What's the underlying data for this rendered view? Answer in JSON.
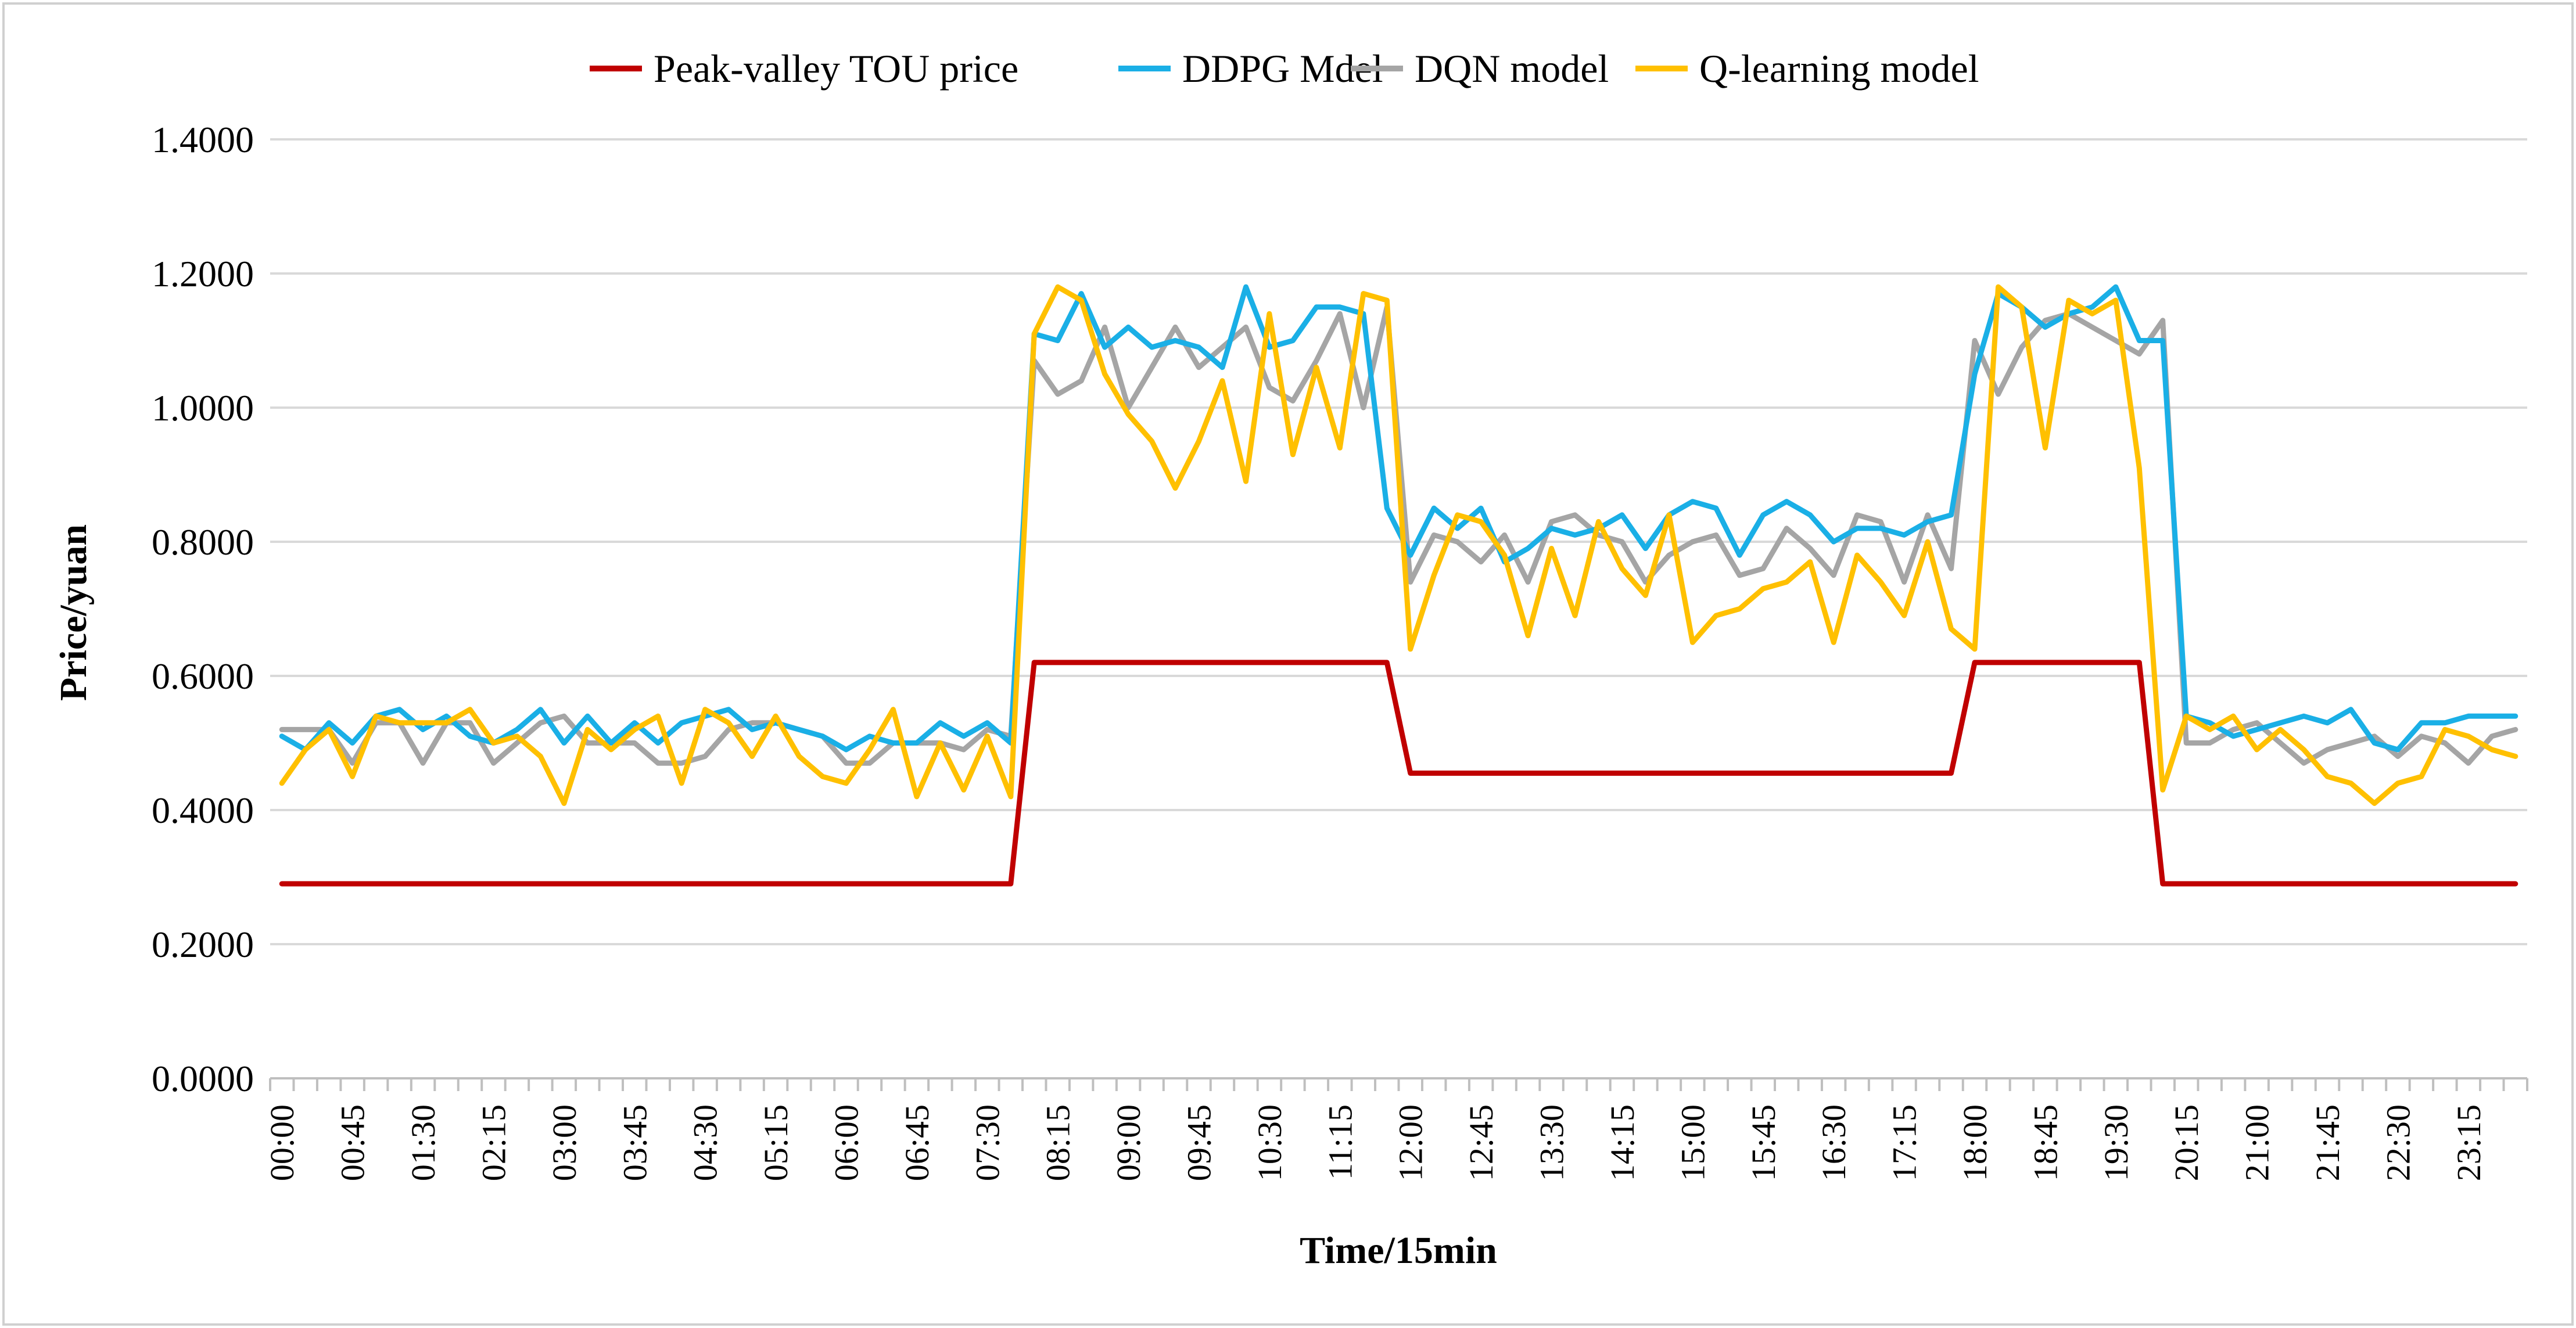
{
  "chart_data": {
    "type": "line",
    "title": "",
    "xlabel": "Time/15min",
    "ylabel": "Price/yuan",
    "ylim": [
      0,
      1.4
    ],
    "yticks": [
      "0.0000",
      "0.2000",
      "0.4000",
      "0.6000",
      "0.8000",
      "1.0000",
      "1.2000",
      "1.4000"
    ],
    "ytick_values": [
      0,
      0.2,
      0.4,
      0.6,
      0.8,
      1.0,
      1.2,
      1.4
    ],
    "grid": true,
    "legend_position": "top-center",
    "x_tick_labels": [
      "00:00",
      "00:45",
      "01:30",
      "02:15",
      "03:00",
      "03:45",
      "04:30",
      "05:15",
      "06:00",
      "06:45",
      "07:30",
      "08:15",
      "09:00",
      "09:45",
      "10:30",
      "11:15",
      "12:00",
      "12:45",
      "13:30",
      "14:15",
      "15:00",
      "15:45",
      "16:30",
      "17:15",
      "18:00",
      "18:45",
      "19:30",
      "20:15",
      "21:00",
      "21:45",
      "22:30",
      "23:15"
    ],
    "x_tick_every": 3,
    "n_points": 96,
    "series": [
      {
        "name": "Peak-valley TOU price",
        "color": "#C00000",
        "values": [
          0.29,
          0.29,
          0.29,
          0.29,
          0.29,
          0.29,
          0.29,
          0.29,
          0.29,
          0.29,
          0.29,
          0.29,
          0.29,
          0.29,
          0.29,
          0.29,
          0.29,
          0.29,
          0.29,
          0.29,
          0.29,
          0.29,
          0.29,
          0.29,
          0.29,
          0.29,
          0.29,
          0.29,
          0.29,
          0.29,
          0.29,
          0.29,
          0.62,
          0.62,
          0.62,
          0.62,
          0.62,
          0.62,
          0.62,
          0.62,
          0.62,
          0.62,
          0.62,
          0.62,
          0.62,
          0.62,
          0.62,
          0.62,
          0.455,
          0.455,
          0.455,
          0.455,
          0.455,
          0.455,
          0.455,
          0.455,
          0.455,
          0.455,
          0.455,
          0.455,
          0.455,
          0.455,
          0.455,
          0.455,
          0.455,
          0.455,
          0.455,
          0.455,
          0.455,
          0.455,
          0.455,
          0.455,
          0.62,
          0.62,
          0.62,
          0.62,
          0.62,
          0.62,
          0.62,
          0.62,
          0.29,
          0.29,
          0.29,
          0.29,
          0.29,
          0.29,
          0.29,
          0.29,
          0.29,
          0.29,
          0.29,
          0.29,
          0.29,
          0.29,
          0.29,
          0.29
        ]
      },
      {
        "name": "DDPG Mdel",
        "color": "#1AAFE6",
        "values": [
          0.51,
          0.49,
          0.53,
          0.5,
          0.54,
          0.55,
          0.52,
          0.54,
          0.51,
          0.5,
          0.52,
          0.55,
          0.5,
          0.54,
          0.5,
          0.53,
          0.5,
          0.53,
          0.54,
          0.55,
          0.52,
          0.53,
          0.52,
          0.51,
          0.49,
          0.51,
          0.5,
          0.5,
          0.53,
          0.51,
          0.53,
          0.5,
          1.11,
          1.1,
          1.17,
          1.09,
          1.12,
          1.09,
          1.1,
          1.09,
          1.06,
          1.18,
          1.09,
          1.1,
          1.15,
          1.15,
          1.14,
          0.85,
          0.78,
          0.85,
          0.82,
          0.85,
          0.77,
          0.79,
          0.82,
          0.81,
          0.82,
          0.84,
          0.79,
          0.84,
          0.86,
          0.85,
          0.78,
          0.84,
          0.86,
          0.84,
          0.8,
          0.82,
          0.82,
          0.81,
          0.83,
          0.84,
          1.05,
          1.17,
          1.15,
          1.12,
          1.14,
          1.15,
          1.18,
          1.1,
          1.1,
          0.54,
          0.53,
          0.51,
          0.52,
          0.53,
          0.54,
          0.53,
          0.55,
          0.5,
          0.49,
          0.53,
          0.53,
          0.54,
          0.54,
          0.54
        ]
      },
      {
        "name": "DQN model",
        "color": "#A5A5A5",
        "values": [
          0.52,
          0.52,
          0.52,
          0.47,
          0.53,
          0.53,
          0.47,
          0.53,
          0.53,
          0.47,
          0.5,
          0.53,
          0.54,
          0.5,
          0.5,
          0.5,
          0.47,
          0.47,
          0.48,
          0.52,
          0.53,
          0.53,
          0.52,
          0.51,
          0.47,
          0.47,
          0.5,
          0.5,
          0.5,
          0.49,
          0.52,
          0.51,
          1.07,
          1.02,
          1.04,
          1.12,
          1.0,
          1.06,
          1.12,
          1.06,
          1.09,
          1.12,
          1.03,
          1.01,
          1.07,
          1.14,
          1.0,
          1.15,
          0.74,
          0.81,
          0.8,
          0.77,
          0.81,
          0.74,
          0.83,
          0.84,
          0.81,
          0.8,
          0.74,
          0.78,
          0.8,
          0.81,
          0.75,
          0.76,
          0.82,
          0.79,
          0.75,
          0.84,
          0.83,
          0.74,
          0.84,
          0.76,
          1.1,
          1.02,
          1.09,
          1.13,
          1.14,
          1.12,
          1.1,
          1.08,
          1.13,
          0.5,
          0.5,
          0.52,
          0.53,
          0.5,
          0.47,
          0.49,
          0.5,
          0.51,
          0.48,
          0.51,
          0.5,
          0.47,
          0.51,
          0.52
        ]
      },
      {
        "name": "Q-learning model",
        "color": "#FFC000",
        "values": [
          0.44,
          0.49,
          0.52,
          0.45,
          0.54,
          0.53,
          0.53,
          0.53,
          0.55,
          0.5,
          0.51,
          0.48,
          0.41,
          0.52,
          0.49,
          0.52,
          0.54,
          0.44,
          0.55,
          0.53,
          0.48,
          0.54,
          0.48,
          0.45,
          0.44,
          0.49,
          0.55,
          0.42,
          0.5,
          0.43,
          0.51,
          0.42,
          1.11,
          1.18,
          1.16,
          1.05,
          0.99,
          0.95,
          0.88,
          0.95,
          1.04,
          0.89,
          1.14,
          0.93,
          1.06,
          0.94,
          1.17,
          1.16,
          0.64,
          0.75,
          0.84,
          0.83,
          0.78,
          0.66,
          0.79,
          0.69,
          0.83,
          0.76,
          0.72,
          0.84,
          0.65,
          0.69,
          0.7,
          0.73,
          0.74,
          0.77,
          0.65,
          0.78,
          0.74,
          0.69,
          0.8,
          0.67,
          0.64,
          1.18,
          1.15,
          0.94,
          1.16,
          1.14,
          1.16,
          0.91,
          0.43,
          0.54,
          0.52,
          0.54,
          0.49,
          0.52,
          0.49,
          0.45,
          0.44,
          0.41,
          0.44,
          0.45,
          0.52,
          0.51,
          0.49,
          0.48
        ]
      }
    ]
  }
}
